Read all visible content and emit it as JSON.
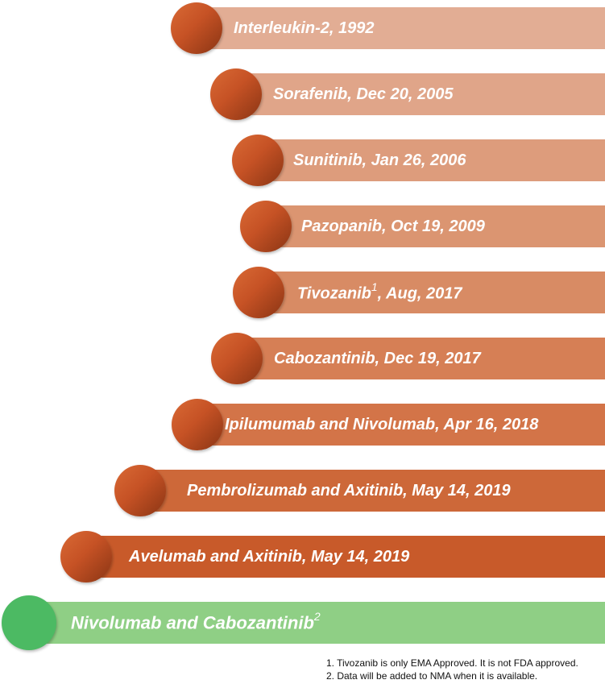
{
  "milestones": [
    {
      "label": "Interleukin-2, 1992",
      "sup": ""
    },
    {
      "label": "Sorafenib, Dec 20, 2005",
      "sup": ""
    },
    {
      "label": "Sunitinib, Jan 26, 2006",
      "sup": ""
    },
    {
      "label": "Pazopanib, Oct 19, 2009",
      "sup": ""
    },
    {
      "label": "Tivozanib",
      "sup": "1",
      "suffix": ", Aug, 2017"
    },
    {
      "label": "Cabozantinib, Dec 19, 2017",
      "sup": ""
    },
    {
      "label": "Ipilumumab and Nivolumab, Apr 16, 2018",
      "sup": ""
    },
    {
      "label": "Pembrolizumab and Axitinib, May 14, 2019",
      "sup": ""
    },
    {
      "label": "Avelumab and Axitinib, May 14, 2019",
      "sup": ""
    },
    {
      "label": "Nivolumab and Cabozantinib",
      "sup": "2"
    }
  ],
  "footnotes": [
    "1. Tivozanib is only EMA Approved. It is not FDA approved.",
    "2. Data will be added to NMA when it is available."
  ],
  "colors": {
    "bars": [
      "#e2ad94",
      "#e0a589",
      "#dd9c7c",
      "#db9571",
      "#d88b64",
      "#d67f55",
      "#d37448",
      "#cd6839",
      "#c85a2a",
      "#8fcf85"
    ],
    "marker_orange": "#c65225",
    "marker_green": "#4cba63"
  }
}
